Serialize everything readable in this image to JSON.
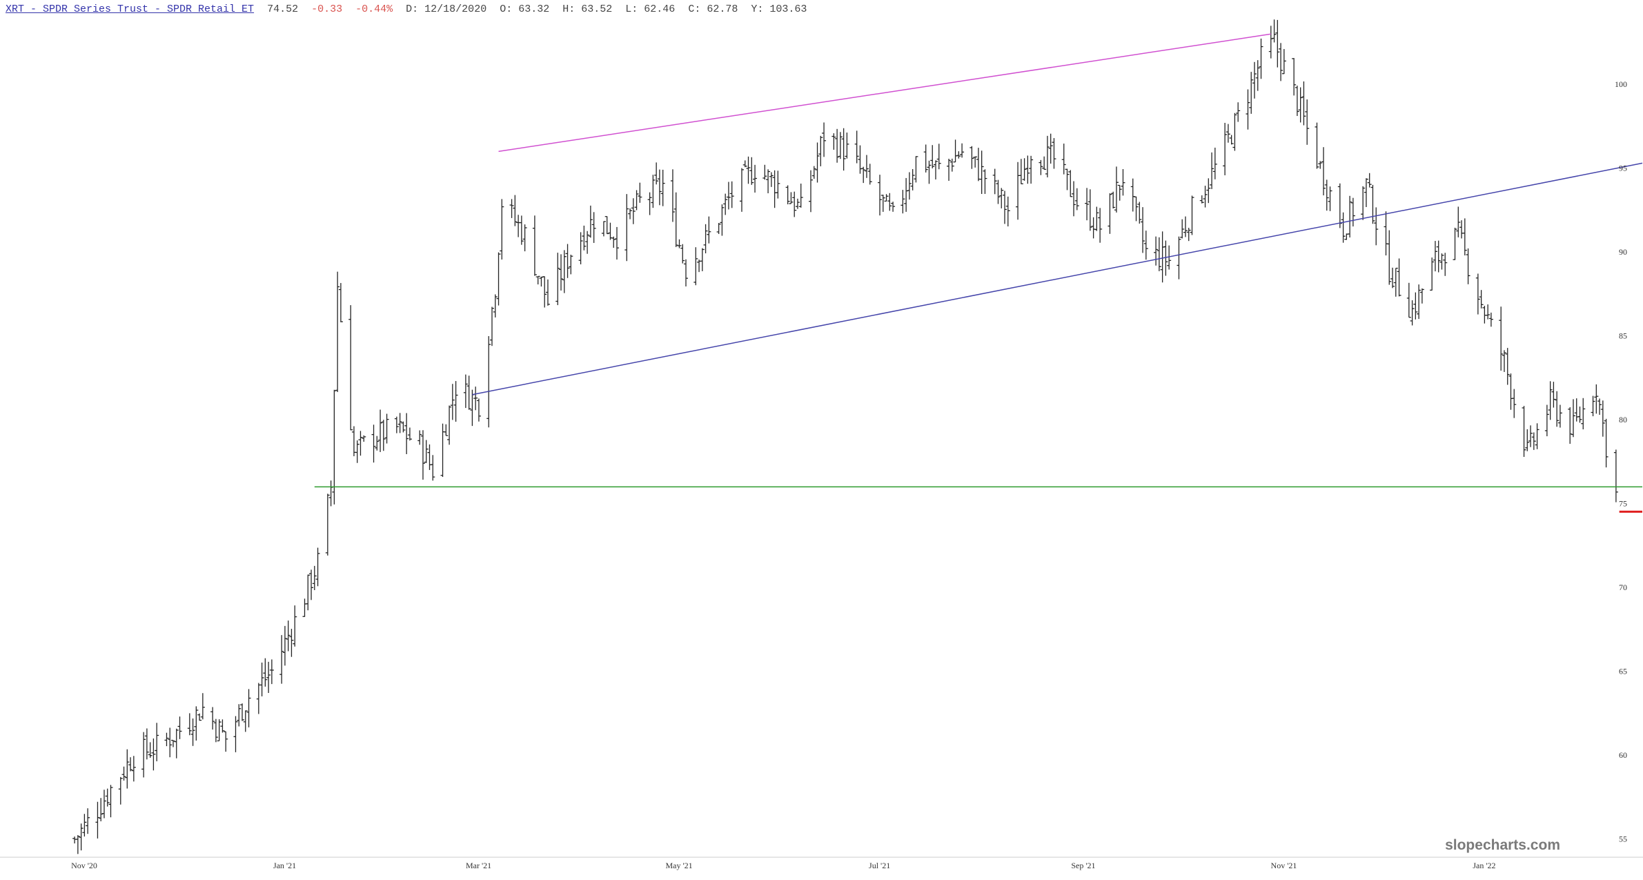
{
  "header": {
    "title": "XRT - SPDR Series Trust - SPDR Retail ET",
    "last": "74.52",
    "change": "-0.33",
    "change_pct": "-0.44%",
    "date": "D: 12/18/2020",
    "open": "O:  63.32",
    "high": "H:  63.52",
    "low": "L:  62.46",
    "close": "C:  62.78",
    "y": "Y: 103.63"
  },
  "watermark": "slopecharts.com",
  "colors": {
    "bars": "#222222",
    "magenta_trendline": "#d04fd0",
    "blue_trendline": "#4444aa",
    "green_support": "#2e9a2e",
    "red_price_marker": "#e02020"
  },
  "chart_data": {
    "type": "ohlc",
    "title": "XRT - SPDR Series Trust - SPDR Retail ET",
    "ylim": [
      54,
      104
    ],
    "y_ticks": [
      55,
      60,
      65,
      70,
      75,
      80,
      85,
      90,
      95,
      100
    ],
    "x_ticks": [
      "Nov '20",
      "Jan '21",
      "Mar '21",
      "May '21",
      "Jul '21",
      "Sep '21",
      "Nov '21",
      "Jan '22"
    ],
    "xlim": [
      "2020-11-01",
      "2022-03-01"
    ],
    "price_series": [
      [
        "2020-11-09",
        55.0
      ],
      [
        "2020-11-15",
        56.5
      ],
      [
        "2020-11-20",
        58.0
      ],
      [
        "2020-11-27",
        60.0
      ],
      [
        "2020-12-04",
        60.5
      ],
      [
        "2020-12-11",
        61.5
      ],
      [
        "2020-12-18",
        62.8
      ],
      [
        "2020-12-25",
        61.0
      ],
      [
        "2021-01-01",
        63.5
      ],
      [
        "2021-01-08",
        65.0
      ],
      [
        "2021-01-15",
        68.0
      ],
      [
        "2021-01-22",
        71.5
      ],
      [
        "2021-01-26",
        76.0
      ],
      [
        "2021-01-28",
        88.0
      ],
      [
        "2021-02-02",
        78.0
      ],
      [
        "2021-02-08",
        79.0
      ],
      [
        "2021-02-15",
        79.5
      ],
      [
        "2021-02-22",
        78.5
      ],
      [
        "2021-02-26",
        77.0
      ],
      [
        "2021-03-05",
        82.0
      ],
      [
        "2021-03-12",
        81.0
      ],
      [
        "2021-03-17",
        88.0
      ],
      [
        "2021-03-19",
        93.0
      ],
      [
        "2021-03-26",
        91.0
      ],
      [
        "2021-04-02",
        87.0
      ],
      [
        "2021-04-09",
        90.0
      ],
      [
        "2021-04-16",
        92.0
      ],
      [
        "2021-04-23",
        91.0
      ],
      [
        "2021-04-30",
        93.0
      ],
      [
        "2021-05-07",
        94.0
      ],
      [
        "2021-05-14",
        89.0
      ],
      [
        "2021-05-21",
        91.0
      ],
      [
        "2021-05-28",
        93.5
      ],
      [
        "2021-06-04",
        95.0
      ],
      [
        "2021-06-11",
        94.0
      ],
      [
        "2021-06-18",
        92.5
      ],
      [
        "2021-06-25",
        97.0
      ],
      [
        "2021-07-02",
        96.0
      ],
      [
        "2021-07-09",
        94.0
      ],
      [
        "2021-07-16",
        92.0
      ],
      [
        "2021-07-23",
        95.5
      ],
      [
        "2021-07-30",
        95.0
      ],
      [
        "2021-08-06",
        96.0
      ],
      [
        "2021-08-13",
        94.5
      ],
      [
        "2021-08-20",
        92.5
      ],
      [
        "2021-08-27",
        96.0
      ],
      [
        "2021-09-03",
        95.5
      ],
      [
        "2021-09-10",
        93.0
      ],
      [
        "2021-09-17",
        91.5
      ],
      [
        "2021-09-24",
        94.5
      ],
      [
        "2021-10-01",
        90.0
      ],
      [
        "2021-10-08",
        89.5
      ],
      [
        "2021-10-15",
        92.5
      ],
      [
        "2021-10-22",
        95.0
      ],
      [
        "2021-10-29",
        98.0
      ],
      [
        "2021-11-05",
        101.5
      ],
      [
        "2021-11-09",
        102.5
      ],
      [
        "2021-11-16",
        99.0
      ],
      [
        "2021-11-23",
        95.0
      ],
      [
        "2021-11-30",
        91.5
      ],
      [
        "2021-12-07",
        94.0
      ],
      [
        "2021-12-14",
        89.0
      ],
      [
        "2021-12-21",
        86.5
      ],
      [
        "2021-12-28",
        89.5
      ],
      [
        "2022-01-04",
        91.0
      ],
      [
        "2022-01-11",
        87.0
      ],
      [
        "2022-01-18",
        83.5
      ],
      [
        "2022-01-25",
        78.0
      ],
      [
        "2022-02-01",
        81.0
      ],
      [
        "2022-02-08",
        79.5
      ],
      [
        "2022-02-15",
        82.0
      ],
      [
        "2022-02-18",
        78.5
      ],
      [
        "2022-02-22",
        74.52
      ]
    ],
    "trendlines": [
      {
        "points": [
          [
            "2021-03-18",
            96.0
          ],
          [
            "2021-11-08",
            103.0
          ]
        ]
      },
      {
        "points": [
          [
            "2021-03-10",
            81.5
          ],
          [
            "2022-03-01",
            95.3
          ]
        ]
      },
      {
        "points": [
          [
            "2021-01-21",
            76.0
          ],
          [
            "2022-03-01",
            76.0
          ]
        ]
      },
      {
        "points": [
          [
            "2022-02-22",
            74.52
          ],
          [
            "2022-03-01",
            74.52
          ]
        ]
      }
    ]
  }
}
